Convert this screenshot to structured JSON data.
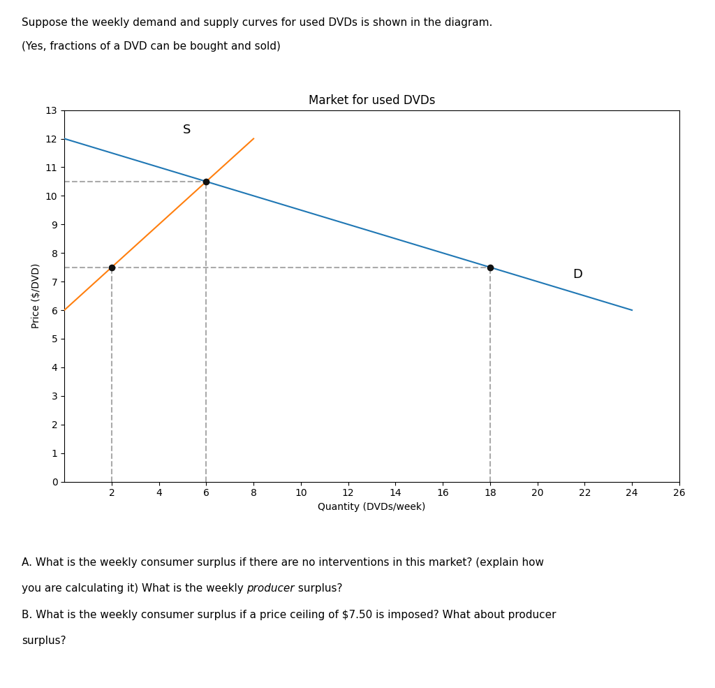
{
  "chart_data": {
    "type": "line",
    "title": "Market for used DVDs",
    "xlabel": "Quantity (DVDs/week)",
    "ylabel": "Price ($/DVD)",
    "xlim": [
      0,
      26
    ],
    "ylim": [
      0,
      13
    ],
    "xticks": [
      2,
      4,
      6,
      8,
      10,
      12,
      14,
      16,
      18,
      20,
      22,
      24,
      26
    ],
    "yticks": [
      0,
      1,
      2,
      3,
      4,
      5,
      6,
      7,
      8,
      9,
      10,
      11,
      12,
      13
    ],
    "series": [
      {
        "name": "D",
        "x": [
          0,
          24
        ],
        "values": [
          12,
          6
        ]
      },
      {
        "name": "S",
        "x": [
          0,
          8
        ],
        "values": [
          6,
          12
        ]
      },
      {
        "line_style": "dashed",
        "color": "#aaaaaa",
        "x": [
          6,
          6
        ],
        "values": [
          0,
          10.5
        ]
      },
      {
        "line_style": "dashed",
        "color": "#aaaaaa",
        "x": [
          0,
          6
        ],
        "values": [
          10.5,
          10.5
        ]
      },
      {
        "line_style": "dashed",
        "color": "#aaaaaa",
        "x": [
          0,
          18
        ],
        "values": [
          7.5,
          7.5
        ]
      },
      {
        "line_style": "dashed",
        "color": "#aaaaaa",
        "x": [
          2,
          2
        ],
        "values": [
          0,
          7.5
        ]
      },
      {
        "line_style": "dashed",
        "color": "#aaaaaa",
        "x": [
          18,
          18
        ],
        "values": [
          0,
          7.5
        ]
      },
      {
        "type": "scatter",
        "color": "#111111",
        "x": [
          6,
          2,
          18
        ],
        "values": [
          10.5,
          7.5,
          7.5
        ]
      }
    ],
    "annotations": [
      {
        "text": "D",
        "x": 21.5,
        "y": 7.25
      },
      {
        "text": "S",
        "x": 5.0,
        "y": 12.3
      }
    ],
    "header": [
      [
        {
          "text": "Suppose the weekly demand and supply curves for used DVDs is shown in the diagram."
        }
      ],
      [
        {
          "text": "(Yes, fractions of a DVD can be bought and sold)"
        }
      ]
    ],
    "footer": [
      [
        {
          "text": "A. What is the weekly consumer surplus if there are no interventions in this market? (explain how"
        }
      ],
      [
        {
          "text": "you are calculating it) What is the weekly "
        },
        {
          "text": "producer",
          "style": "italic"
        },
        {
          "text": " surplus?"
        }
      ],
      [
        {
          "text": "B. What is the weekly consumer surplus if a price ceiling of $7.50 is imposed? What about producer"
        }
      ],
      [
        {
          "text": "surplus?"
        }
      ]
    ]
  }
}
